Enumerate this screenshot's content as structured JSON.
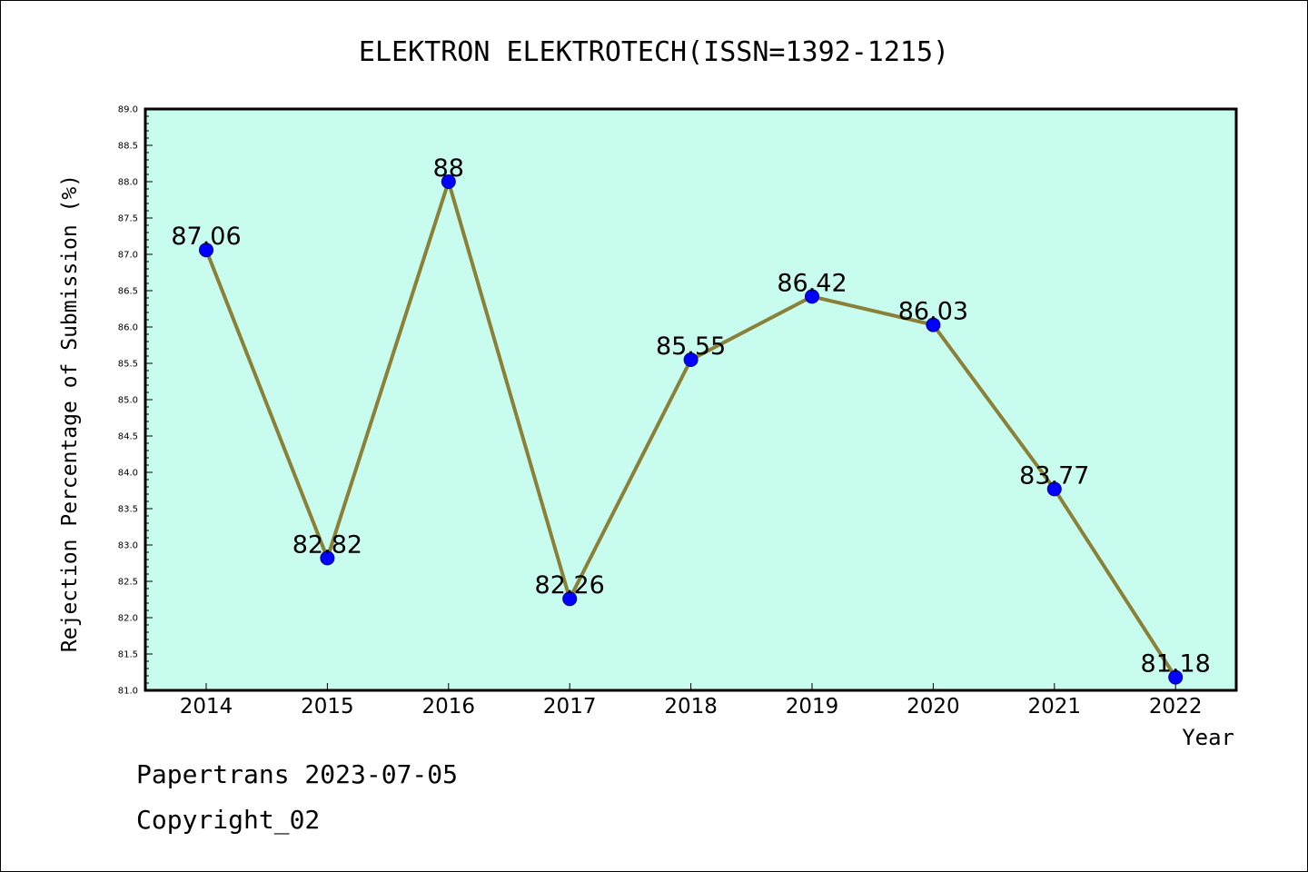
{
  "footer": {
    "stamp": "Papertrans 2023-07-05",
    "copyright": "Copyright_02"
  },
  "colors": {
    "plot_background": "#c8fcee",
    "line": "#8b8038",
    "marker": "#0000ff",
    "axis": "#000000"
  },
  "chart_data": {
    "type": "line",
    "title": "ELEKTRON ELEKTROTECH(ISSN=1392-1215)",
    "xlabel": "Year",
    "ylabel": "Rejection Percentage of Submission (%)",
    "categories": [
      "2014",
      "2015",
      "2016",
      "2017",
      "2018",
      "2019",
      "2020",
      "2021",
      "2022"
    ],
    "series": [
      {
        "values": [
          87.06,
          82.82,
          88,
          82.26,
          85.55,
          86.42,
          86.03,
          83.77,
          81.18
        ],
        "data_labels": [
          "87.06",
          "82.82",
          "88",
          "82.26",
          "85.55",
          "86.42",
          "86.03",
          "83.77",
          "81.18"
        ]
      }
    ],
    "ylim": [
      81.0,
      89.0
    ],
    "yticks": [
      "81.0",
      "81.5",
      "82.0",
      "82.5",
      "83.0",
      "83.5",
      "84.0",
      "84.5",
      "85.0",
      "85.5",
      "86.0",
      "86.5",
      "87.0",
      "87.5",
      "88.0",
      "88.5",
      "89.0"
    ],
    "minor_ytick_step": 0.1,
    "grid": false,
    "legend": "none"
  }
}
